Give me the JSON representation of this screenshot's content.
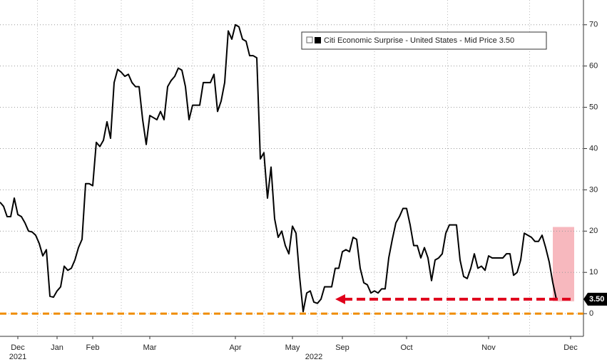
{
  "chart_data": {
    "type": "line",
    "legend": "Citi Economic Surprise - United States - Mid Price 3.50",
    "series": [
      {
        "name": "Citi Economic Surprise - United States",
        "color": "#000000",
        "values": [
          27,
          26,
          23.5,
          23.5,
          28,
          24,
          23.5,
          22,
          20,
          19.8,
          19,
          17,
          14,
          15.5,
          4.2,
          4,
          5.5,
          6.5,
          11.5,
          10.5,
          11,
          13,
          16,
          18,
          31.5,
          31.5,
          31,
          41.5,
          40.5,
          42,
          46.5,
          42.5,
          56,
          59.2,
          58.5,
          57.5,
          58,
          56,
          55,
          55,
          47,
          41,
          48,
          47.5,
          47,
          49,
          47,
          55,
          56.5,
          57.5,
          59.5,
          59,
          55,
          47,
          50.5,
          50.5,
          50.5,
          56,
          56,
          56,
          58,
          49,
          51.5,
          56,
          68.5,
          66.5,
          70,
          69.5,
          66.5,
          66,
          62.5,
          62.5,
          62,
          37.5,
          39,
          28,
          35.5,
          23,
          18.5,
          20,
          16.5,
          14.5,
          21.2,
          19.5,
          9,
          0.5,
          5,
          5.5,
          2.8,
          2.5,
          3.5,
          6.5,
          6.5,
          6.5,
          11,
          11,
          15,
          15.5,
          15,
          18.5,
          18,
          11,
          7.5,
          7,
          5,
          5.5,
          5,
          6,
          6,
          13.5,
          18,
          22,
          23.5,
          25.5,
          25.5,
          21.5,
          16.5,
          16.5,
          13.5,
          16,
          13.5,
          8,
          13,
          13.5,
          14.5,
          19.5,
          21.5,
          21.5,
          21.5,
          13,
          9,
          8.5,
          11,
          14.5,
          11,
          11.5,
          10.5,
          14,
          13.5,
          13.5,
          13.5,
          13.5,
          14.5,
          14.5,
          9.3,
          10,
          13,
          19.5,
          19,
          18.5,
          17.5,
          17.5,
          19,
          16,
          12.5,
          7.5,
          3.5
        ]
      }
    ],
    "last_label": {
      "value": 3.5,
      "label": "3.50"
    },
    "ylim": [
      -5.5,
      76
    ],
    "yticks": [
      0,
      10,
      20,
      30,
      40,
      50,
      60,
      70
    ],
    "grid": true,
    "xticks": [
      {
        "value": 5,
        "label": "Dec"
      },
      {
        "value": 16,
        "label": "Jan"
      },
      {
        "value": 26,
        "label": "Feb"
      },
      {
        "value": 42,
        "label": "Mar"
      },
      {
        "value": 66,
        "label": "Apr"
      },
      {
        "value": 82,
        "label": "May"
      },
      {
        "value": 96,
        "label": "Sep"
      },
      {
        "value": 114,
        "label": "Oct"
      },
      {
        "value": 137,
        "label": "Nov"
      },
      {
        "value": 160,
        "label": "Dec"
      }
    ],
    "year_labels": [
      {
        "value": 5,
        "label": "2021"
      },
      {
        "value": 88,
        "label": "2022"
      }
    ],
    "reference_line": {
      "value": 0,
      "color": "#f08c00"
    },
    "arrow": {
      "value": 3.5,
      "from": 160,
      "to": 94,
      "color": "#e0001b"
    },
    "highlight": {
      "from": 155,
      "to": 161,
      "ylim": [
        3,
        21
      ],
      "color": "#f4a0a8"
    }
  }
}
